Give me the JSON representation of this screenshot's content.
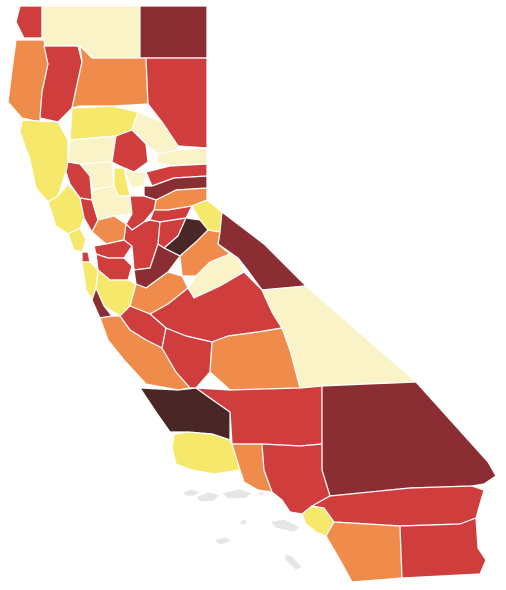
{
  "map": {
    "region": "California",
    "color_scale": {
      "level_1": "#f9f3c7",
      "level_2": "#f6e86b",
      "level_3": "#f08c4b",
      "level_4": "#d03d3d",
      "level_5": "#8a2e34",
      "level_6": "#4a2626"
    },
    "island_color": "#e6e6e6",
    "counties": [
      {
        "id": "del-norte",
        "level": 4
      },
      {
        "id": "siskiyou",
        "level": 1
      },
      {
        "id": "modoc",
        "level": 5
      },
      {
        "id": "humboldt",
        "level": 3
      },
      {
        "id": "trinity",
        "level": 4
      },
      {
        "id": "shasta",
        "level": 3
      },
      {
        "id": "lassen",
        "level": 4
      },
      {
        "id": "mendocino",
        "level": 2
      },
      {
        "id": "tehama",
        "level": 2
      },
      {
        "id": "plumas",
        "level": 1
      },
      {
        "id": "glenn",
        "level": 1
      },
      {
        "id": "butte",
        "level": 4
      },
      {
        "id": "sierra",
        "level": 1
      },
      {
        "id": "nevada",
        "level": 4
      },
      {
        "id": "lake",
        "level": 4
      },
      {
        "id": "colusa",
        "level": 1
      },
      {
        "id": "sutter",
        "level": 2
      },
      {
        "id": "yuba",
        "level": 1
      },
      {
        "id": "placer",
        "level": 5
      },
      {
        "id": "el-dorado",
        "level": 3
      },
      {
        "id": "sonoma",
        "level": 2
      },
      {
        "id": "napa",
        "level": 4
      },
      {
        "id": "yolo",
        "level": 1
      },
      {
        "id": "sacramento",
        "level": 4
      },
      {
        "id": "amador",
        "level": 4
      },
      {
        "id": "alpine",
        "level": 2
      },
      {
        "id": "marin",
        "level": 2
      },
      {
        "id": "solano",
        "level": 3
      },
      {
        "id": "contra-costa",
        "level": 4
      },
      {
        "id": "san-joaquin",
        "level": 4
      },
      {
        "id": "calaveras",
        "level": 4
      },
      {
        "id": "tuolumne",
        "level": 6
      },
      {
        "id": "mono",
        "level": 5
      },
      {
        "id": "san-francisco",
        "level": 4
      },
      {
        "id": "alameda",
        "level": 4
      },
      {
        "id": "stanislaus",
        "level": 5
      },
      {
        "id": "mariposa",
        "level": 3
      },
      {
        "id": "madera",
        "level": 1
      },
      {
        "id": "san-mateo",
        "level": 2
      },
      {
        "id": "santa-clara",
        "level": 2
      },
      {
        "id": "santa-cruz",
        "level": 5
      },
      {
        "id": "merced",
        "level": 3
      },
      {
        "id": "fresno",
        "level": 4
      },
      {
        "id": "inyo",
        "level": 1
      },
      {
        "id": "san-benito",
        "level": 4
      },
      {
        "id": "monterey",
        "level": 3
      },
      {
        "id": "kings",
        "level": 4
      },
      {
        "id": "tulare",
        "level": 3
      },
      {
        "id": "san-luis-obispo",
        "level": 6
      },
      {
        "id": "kern",
        "level": 4
      },
      {
        "id": "san-bernardino",
        "level": 5
      },
      {
        "id": "santa-barbara",
        "level": 2
      },
      {
        "id": "ventura",
        "level": 3
      },
      {
        "id": "los-angeles",
        "level": 4
      },
      {
        "id": "orange",
        "level": 2
      },
      {
        "id": "riverside",
        "level": 4
      },
      {
        "id": "san-diego",
        "level": 3
      },
      {
        "id": "imperial",
        "level": 4
      }
    ]
  }
}
